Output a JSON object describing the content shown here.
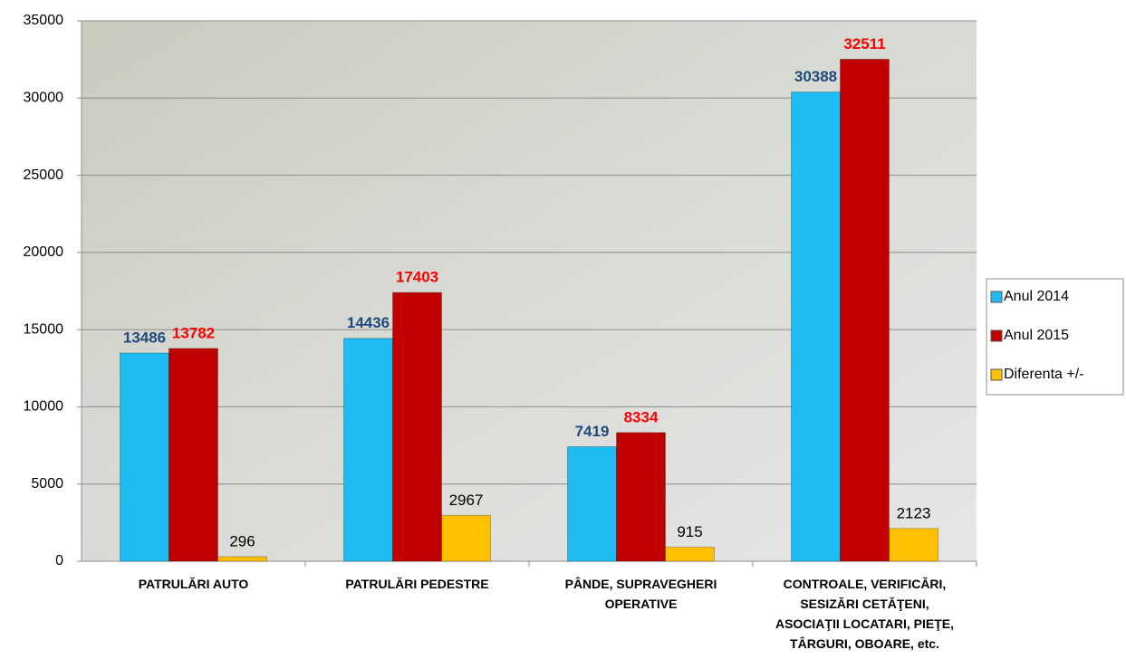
{
  "chart_data": {
    "type": "bar",
    "categories": [
      "PATRULĂRI AUTO",
      "PATRULĂRI PEDESTRE",
      "PÂNDE, SUPRAVEGHERI OPERATIVE",
      "CONTROALE, VERIFICĂRI, SESIZĂRI CETĂŢENI, ASOCIAŢII LOCATARI, PIEŢE, TÂRGURI, OBOARE, etc."
    ],
    "series": [
      {
        "name": "Anul 2014",
        "color": "#1ebcf0",
        "label_color": "#1f497d",
        "values": [
          13486,
          14436,
          7419,
          30388
        ]
      },
      {
        "name": "Anul 2015",
        "color": "#c00000",
        "label_color": "#ff0000",
        "values": [
          13782,
          17403,
          8334,
          32511
        ]
      },
      {
        "name": "Diferenta +/-",
        "color": "#ffc000",
        "label_color": "#000000",
        "values": [
          296,
          2967,
          915,
          2123
        ]
      }
    ],
    "ylim": [
      0,
      35000
    ],
    "yticks": [
      0,
      5000,
      10000,
      15000,
      20000,
      25000,
      30000,
      35000
    ],
    "grid": true,
    "legend": "right"
  }
}
